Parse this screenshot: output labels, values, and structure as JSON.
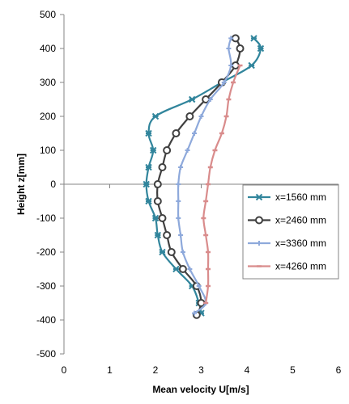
{
  "chart_data": {
    "type": "line",
    "xlabel": "Mean velocity U[m/s]",
    "ylabel": "Height z[mm]",
    "xlim": [
      0,
      6
    ],
    "ylim": [
      -500,
      500
    ],
    "xticks": [
      0,
      1,
      2,
      3,
      4,
      5,
      6
    ],
    "yticks": [
      -500,
      -400,
      -300,
      -200,
      -100,
      0,
      100,
      200,
      300,
      400,
      500
    ],
    "grid": false,
    "legend_position": "right",
    "series": [
      {
        "name": "x=1560 mm",
        "color": "#31859C",
        "marker": "star",
        "points": [
          [
            3.0,
            -380
          ],
          [
            2.95,
            -350
          ],
          [
            2.8,
            -300
          ],
          [
            2.45,
            -250
          ],
          [
            2.15,
            -200
          ],
          [
            2.05,
            -150
          ],
          [
            2.0,
            -100
          ],
          [
            1.85,
            -50
          ],
          [
            1.8,
            0
          ],
          [
            1.85,
            50
          ],
          [
            1.95,
            100
          ],
          [
            1.85,
            150
          ],
          [
            2.0,
            200
          ],
          [
            2.8,
            250
          ],
          [
            3.45,
            300
          ],
          [
            4.1,
            350
          ],
          [
            4.3,
            400
          ],
          [
            4.15,
            430
          ]
        ]
      },
      {
        "name": "x=2460 mm",
        "color": "#404040",
        "marker": "circle",
        "points": [
          [
            2.9,
            -385
          ],
          [
            3.0,
            -350
          ],
          [
            2.9,
            -300
          ],
          [
            2.6,
            -250
          ],
          [
            2.35,
            -200
          ],
          [
            2.25,
            -150
          ],
          [
            2.15,
            -100
          ],
          [
            2.05,
            -50
          ],
          [
            2.05,
            0
          ],
          [
            2.15,
            50
          ],
          [
            2.25,
            100
          ],
          [
            2.45,
            150
          ],
          [
            2.75,
            200
          ],
          [
            3.1,
            250
          ],
          [
            3.45,
            300
          ],
          [
            3.75,
            350
          ],
          [
            3.85,
            400
          ],
          [
            3.75,
            430
          ]
        ]
      },
      {
        "name": "x=3360 mm",
        "color": "#8EA9DB",
        "marker": "plus",
        "points": [
          [
            2.85,
            -380
          ],
          [
            3.1,
            -350
          ],
          [
            2.95,
            -300
          ],
          [
            2.75,
            -250
          ],
          [
            2.6,
            -200
          ],
          [
            2.55,
            -150
          ],
          [
            2.5,
            -100
          ],
          [
            2.5,
            -50
          ],
          [
            2.5,
            0
          ],
          [
            2.55,
            50
          ],
          [
            2.7,
            100
          ],
          [
            2.85,
            150
          ],
          [
            3.0,
            200
          ],
          [
            3.2,
            250
          ],
          [
            3.5,
            300
          ],
          [
            3.65,
            350
          ],
          [
            3.6,
            400
          ],
          [
            3.65,
            430
          ]
        ]
      },
      {
        "name": "x=4260 mm",
        "color": "#D98C8C",
        "marker": "dash",
        "points": [
          [
            3.1,
            -350
          ],
          [
            3.15,
            -300
          ],
          [
            3.15,
            -250
          ],
          [
            3.15,
            -200
          ],
          [
            3.1,
            -150
          ],
          [
            3.05,
            -100
          ],
          [
            3.1,
            -50
          ],
          [
            3.15,
            0
          ],
          [
            3.2,
            50
          ],
          [
            3.3,
            100
          ],
          [
            3.45,
            150
          ],
          [
            3.55,
            200
          ],
          [
            3.6,
            250
          ],
          [
            3.7,
            300
          ],
          [
            3.85,
            350
          ]
        ]
      }
    ]
  }
}
